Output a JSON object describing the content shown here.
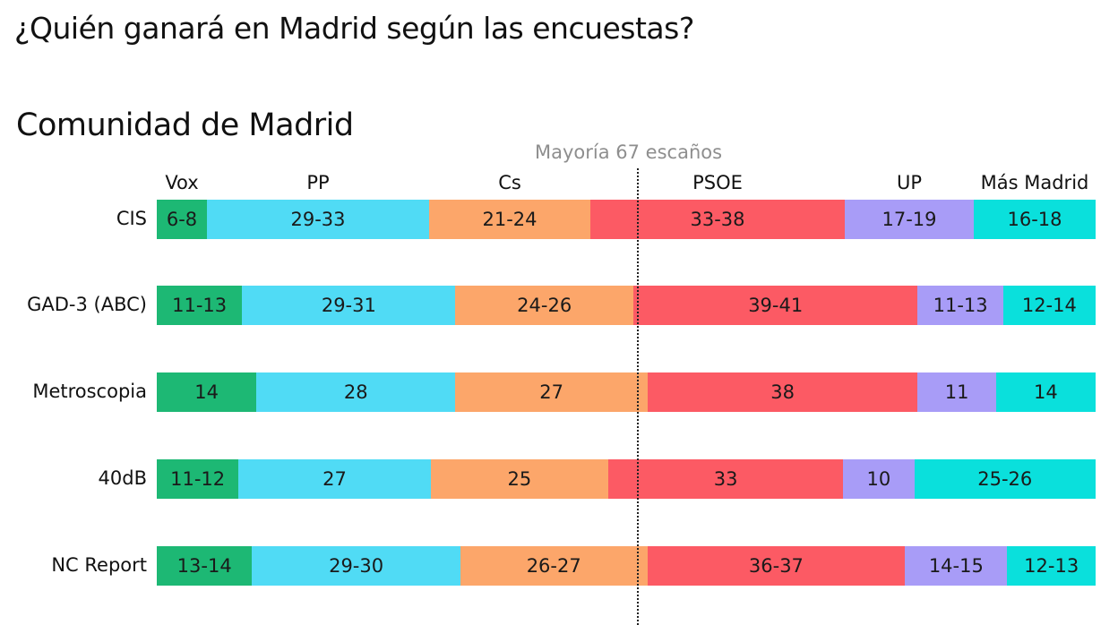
{
  "header": {
    "title": "¿Quién ganará en Madrid según las encuestas?",
    "subtitle": "Comunidad de Madrid",
    "majority_label": "Mayoría 67 escaños"
  },
  "chart_data": {
    "type": "bar",
    "orientation": "horizontal-stacked",
    "title": "¿Quién ganará en Madrid según las encuestas?",
    "subtitle": "Comunidad de Madrid",
    "annotation": "Mayoría 67 escaños",
    "majority_threshold": 67,
    "parties": [
      "Vox",
      "PP",
      "Cs",
      "PSOE",
      "UP",
      "Más Madrid"
    ],
    "colors": [
      "#1db874",
      "#50dbf5",
      "#fca66a",
      "#fc5a64",
      "#a89cf7",
      "#0ae0dc"
    ],
    "categories": [
      "CIS",
      "GAD-3 (ABC)",
      "Metroscopia",
      "40dB",
      "NC Report"
    ],
    "series": [
      {
        "name": "CIS",
        "labels": [
          "6-8",
          "29-33",
          "21-24",
          "33-38",
          "17-19",
          "16-18"
        ],
        "low": [
          6,
          29,
          21,
          33,
          17,
          16
        ],
        "high": [
          8,
          33,
          24,
          38,
          19,
          18
        ]
      },
      {
        "name": "GAD-3 (ABC)",
        "labels": [
          "11-13",
          "29-31",
          "24-26",
          "39-41",
          "11-13",
          "12-14"
        ],
        "low": [
          11,
          29,
          24,
          39,
          11,
          12
        ],
        "high": [
          13,
          31,
          26,
          41,
          13,
          14
        ]
      },
      {
        "name": "Metroscopia",
        "labels": [
          "14",
          "28",
          "27",
          "38",
          "11",
          "14"
        ],
        "low": [
          14,
          28,
          27,
          38,
          11,
          14
        ],
        "high": [
          14,
          28,
          27,
          38,
          11,
          14
        ]
      },
      {
        "name": "40dB",
        "labels": [
          "11-12",
          "27",
          "25",
          "33",
          "10",
          "25-26"
        ],
        "low": [
          11,
          27,
          25,
          33,
          10,
          25
        ],
        "high": [
          12,
          27,
          25,
          33,
          10,
          26
        ]
      },
      {
        "name": "NC Report",
        "labels": [
          "13-14",
          "29-30",
          "26-27",
          "36-37",
          "14-15",
          "12-13"
        ],
        "low": [
          13,
          29,
          26,
          36,
          14,
          12
        ],
        "high": [
          14,
          30,
          27,
          37,
          15,
          13
        ]
      }
    ],
    "legend": "top, party names above first bar",
    "grid": false
  }
}
